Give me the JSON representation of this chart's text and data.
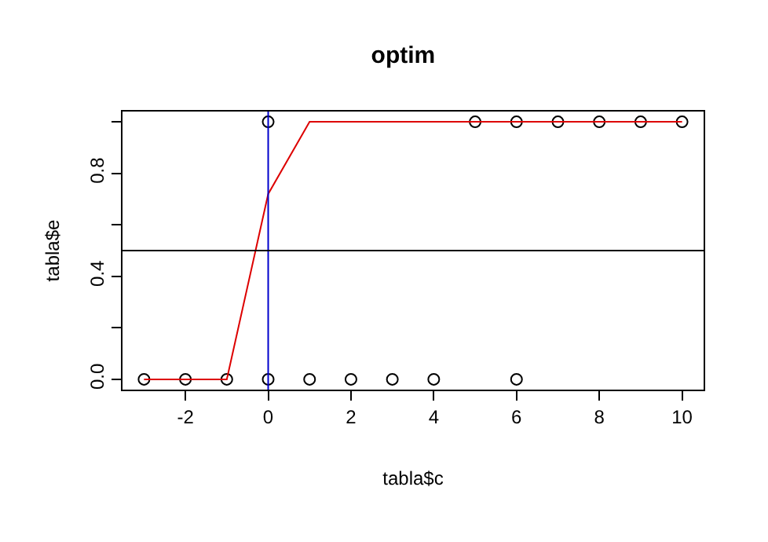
{
  "chart_data": {
    "type": "scatter",
    "title": "optim",
    "xlabel": "tabla$c",
    "ylabel": "tabla$e",
    "xlim": [
      -3.52,
      10.52
    ],
    "ylim": [
      -0.04,
      1.04
    ],
    "xticks": [
      -2,
      0,
      2,
      4,
      6,
      8,
      10
    ],
    "yticks": [
      {
        "value": 0,
        "label": "0.0"
      },
      {
        "value": 0.2,
        "label": null
      },
      {
        "value": 0.4,
        "label": "0.4"
      },
      {
        "value": 0.6,
        "label": null
      },
      {
        "value": 0.8,
        "label": "0.8"
      },
      {
        "value": 1.0,
        "label": null
      }
    ],
    "grid": false,
    "series": [
      {
        "marker": "circle",
        "color": "#000000",
        "x": [
          -3,
          -2,
          -1,
          0,
          0,
          1,
          2,
          3,
          4,
          5,
          6,
          6,
          7,
          8,
          9,
          10
        ],
        "values": [
          0,
          0,
          0,
          0,
          1,
          0,
          0,
          0,
          0,
          1,
          1,
          0,
          1,
          1,
          1,
          1
        ]
      },
      {
        "type": "line",
        "color": "#dd0000",
        "line_style": "solid",
        "x": [
          -3,
          -2,
          -1,
          0,
          1,
          2,
          3,
          4,
          5,
          6,
          7,
          8,
          9,
          10
        ],
        "values": [
          0,
          0,
          0,
          0.72,
          1,
          1,
          1,
          1,
          1,
          1,
          1,
          1,
          1,
          1
        ]
      }
    ],
    "ref_lines": [
      {
        "axis": "x",
        "value": 0,
        "color": "#0000cc"
      },
      {
        "axis": "y",
        "value": 0.5,
        "color": "#000000"
      }
    ]
  }
}
